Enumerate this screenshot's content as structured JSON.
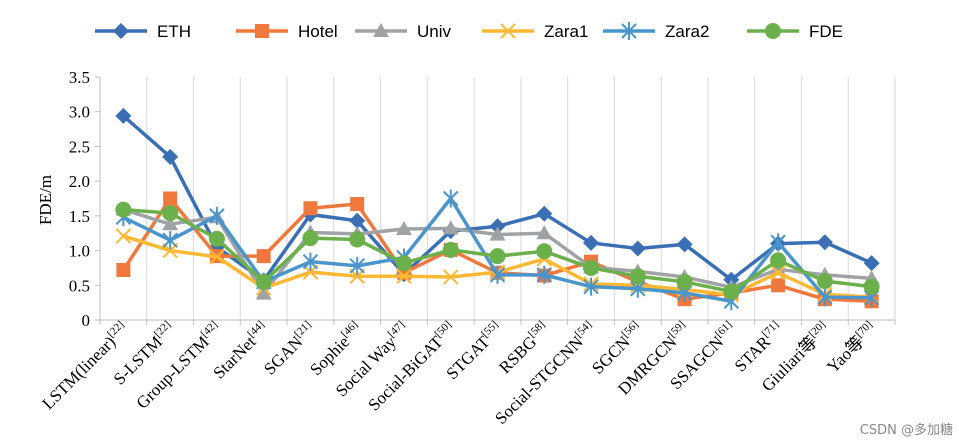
{
  "chart_data": {
    "type": "line",
    "title": "",
    "xlabel": "",
    "ylabel": "FDE/m",
    "ylim": [
      0,
      3.5
    ],
    "yticks": [
      "0",
      "0.5",
      "1.0",
      "1.5",
      "2.0",
      "2.5",
      "3.0",
      "3.5"
    ],
    "grid": "vertical gridlines",
    "legend_position": "top",
    "categories": [
      {
        "name": "LSTM(linear)",
        "ref": "[22]"
      },
      {
        "name": "S-LSTM",
        "ref": "[22]"
      },
      {
        "name": "Group-LSTM",
        "ref": "[42]"
      },
      {
        "name": "StarNet",
        "ref": "[44]"
      },
      {
        "name": "SGAN",
        "ref": "[21]"
      },
      {
        "name": "Sophie",
        "ref": "[46]"
      },
      {
        "name": "Social Way",
        "ref": "[47]"
      },
      {
        "name": "Social-BiGAT",
        "ref": "[50]"
      },
      {
        "name": "STGAT",
        "ref": "[55]"
      },
      {
        "name": "RSBG",
        "ref": "[58]"
      },
      {
        "name": "Social-STGCNN",
        "ref": "[54]"
      },
      {
        "name": "SGCN",
        "ref": "[56]"
      },
      {
        "name": "DMRGCN",
        "ref": "[59]"
      },
      {
        "name": "SSAGCN",
        "ref": "[61]"
      },
      {
        "name": "STAR",
        "ref": "[71]"
      },
      {
        "name": "Giuliari等",
        "ref": "[20]"
      },
      {
        "name": "Yao等",
        "ref": "[70]"
      }
    ],
    "series": [
      {
        "name": "ETH",
        "color": "#3a6fb5",
        "marker": "diamond",
        "values": [
          2.94,
          2.35,
          1.05,
          0.57,
          1.52,
          1.43,
          0.66,
          1.28,
          1.35,
          1.53,
          1.11,
          1.03,
          1.09,
          0.58,
          1.1,
          1.12,
          0.82
        ]
      },
      {
        "name": "Hotel",
        "color": "#f0783c",
        "marker": "square",
        "values": [
          0.72,
          1.75,
          0.92,
          0.92,
          1.61,
          1.67,
          0.68,
          1.01,
          0.68,
          0.64,
          0.84,
          0.55,
          0.3,
          0.39,
          0.5,
          0.3,
          0.27
        ]
      },
      {
        "name": "Univ",
        "color": "#9fa3a6",
        "marker": "triangle",
        "values": [
          1.59,
          1.38,
          1.48,
          0.38,
          1.26,
          1.24,
          1.31,
          1.32,
          1.23,
          1.25,
          0.76,
          0.7,
          0.62,
          0.47,
          0.73,
          0.65,
          0.6
        ]
      },
      {
        "name": "Zara1",
        "color": "#ffb833",
        "marker": "x",
        "values": [
          1.21,
          1.0,
          0.91,
          0.46,
          0.69,
          0.63,
          0.63,
          0.62,
          0.69,
          0.88,
          0.52,
          0.5,
          0.44,
          0.36,
          0.68,
          0.37,
          0.33
        ]
      },
      {
        "name": "Zara2",
        "color": "#4a95cb",
        "marker": "star",
        "values": [
          1.48,
          1.15,
          1.5,
          0.55,
          0.84,
          0.78,
          0.9,
          1.75,
          0.65,
          0.65,
          0.48,
          0.45,
          0.39,
          0.27,
          1.12,
          0.33,
          0.32
        ]
      },
      {
        "name": "FDE",
        "color": "#6bb04b",
        "marker": "circle",
        "values": [
          1.59,
          1.54,
          1.17,
          0.55,
          1.18,
          1.16,
          0.82,
          1.01,
          0.92,
          0.99,
          0.75,
          0.63,
          0.55,
          0.41,
          0.86,
          0.56,
          0.48
        ]
      }
    ]
  },
  "watermark": "CSDN @多加糖"
}
